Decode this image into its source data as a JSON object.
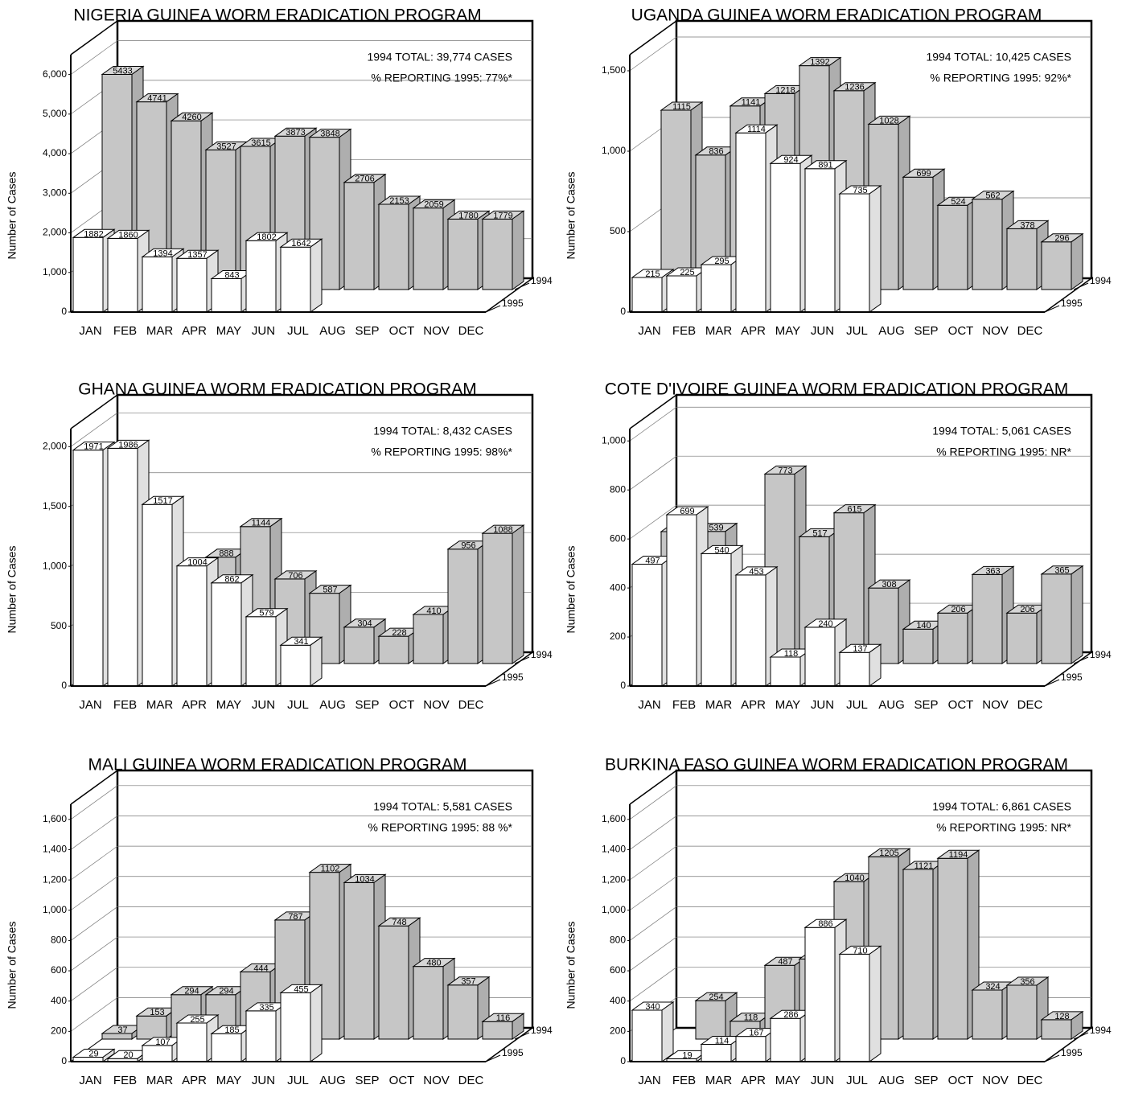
{
  "chart_data": [
    {
      "type": "bar",
      "title": "NIGERIA GUINEA WORM ERADICATION PROGRAM",
      "annotations": [
        "1994 TOTAL: 39,774 CASES",
        "% REPORTING 1995: 77%*"
      ],
      "y_label": "Number of Cases",
      "categories": [
        "JAN",
        "FEB",
        "MAR",
        "APR",
        "MAY",
        "JUN",
        "JUL",
        "AUG",
        "SEP",
        "OCT",
        "NOV",
        "DEC"
      ],
      "series": [
        {
          "name": "1994",
          "color": "#c6c6c6",
          "values": [
            5433,
            4741,
            4260,
            3527,
            3615,
            3873,
            3848,
            2706,
            2153,
            2059,
            1780,
            1779
          ]
        },
        {
          "name": "1995",
          "color": "#ffffff",
          "values": [
            1882,
            1860,
            1394,
            1357,
            843,
            1802,
            1642,
            null,
            null,
            null,
            null,
            null
          ]
        }
      ],
      "ylim": [
        0,
        6500
      ],
      "yticks": [
        0,
        {
          "value": 1000,
          "label": "1,000"
        },
        {
          "value": 2000,
          "label": "2,000"
        },
        {
          "value": 3000,
          "label": "3,000"
        },
        {
          "value": 4000,
          "label": "4,000"
        },
        {
          "value": 5000,
          "label": "5,000"
        },
        {
          "value": 6000,
          "label": "6,000"
        }
      ],
      "grid": true
    },
    {
      "type": "bar",
      "title": "UGANDA GUINEA WORM ERADICATION PROGRAM",
      "annotations": [
        "1994 TOTAL: 10,425 CASES",
        "% REPORTING 1995: 92%*"
      ],
      "y_label": "Number of Cases",
      "categories": [
        "JAN",
        "FEB",
        "MAR",
        "APR",
        "MAY",
        "JUN",
        "JUL",
        "AUG",
        "SEP",
        "OCT",
        "NOV",
        "DEC"
      ],
      "series": [
        {
          "name": "1994",
          "color": "#c6c6c6",
          "values": [
            1115,
            836,
            1141,
            1218,
            1392,
            1236,
            1028,
            699,
            524,
            562,
            378,
            296
          ]
        },
        {
          "name": "1995",
          "color": "#ffffff",
          "values": [
            215,
            225,
            295,
            1114,
            924,
            891,
            735,
            null,
            null,
            null,
            null,
            null
          ]
        }
      ],
      "ylim": [
        0,
        1600
      ],
      "yticks": [
        0,
        500,
        {
          "value": 1000,
          "label": "1,000"
        },
        {
          "value": 1500,
          "label": "1,500"
        }
      ],
      "grid": true
    },
    {
      "type": "bar",
      "title": "GHANA GUINEA WORM ERADICATION PROGRAM",
      "annotations": [
        "1994 TOTAL: 8,432 CASES",
        "% REPORTING 1995: 98%*"
      ],
      "y_label": "Number of Cases",
      "categories": [
        "JAN",
        "FEB",
        "MAR",
        "APR",
        "MAY",
        "JUN",
        "JUL",
        "AUG",
        "SEP",
        "OCT",
        "NOV",
        "DEC"
      ],
      "series": [
        {
          "name": "1994",
          "color": "#c6c6c6",
          "values": [
            null,
            null,
            null,
            888,
            1144,
            706,
            587,
            304,
            228,
            410,
            956,
            1088
          ]
        },
        {
          "name": "1995",
          "color": "#ffffff",
          "values": [
            1971,
            1986,
            1517,
            1004,
            862,
            579,
            341,
            null,
            null,
            null,
            null,
            null
          ]
        }
      ],
      "ylim": [
        0,
        2150
      ],
      "yticks": [
        0,
        500,
        {
          "value": 1000,
          "label": "1,000"
        },
        {
          "value": 1500,
          "label": "1,500"
        },
        {
          "value": 2000,
          "label": "2,000"
        }
      ],
      "grid": true
    },
    {
      "type": "bar",
      "title": "COTE D'IVOIRE GUINEA WORM ERADICATION PROGRAM",
      "annotations": [
        "1994 TOTAL: 5,061 CASES",
        "% REPORTING 1995: NR*"
      ],
      "y_label": "Number of Cases",
      "categories": [
        "JAN",
        "FEB",
        "MAR",
        "APR",
        "MAY",
        "JUN",
        "JUL",
        "AUG",
        "SEP",
        "OCT",
        "NOV",
        "DEC"
      ],
      "series": [
        {
          "name": "1994",
          "color": "#c6c6c6",
          "values": [
            538,
            539,
            null,
            773,
            517,
            615,
            308,
            140,
            206,
            363,
            206,
            365
          ]
        },
        {
          "name": "1995",
          "color": "#ffffff",
          "values": [
            497,
            699,
            540,
            453,
            118,
            240,
            137,
            null,
            null,
            null,
            null,
            null
          ]
        }
      ],
      "ylim": [
        0,
        1050
      ],
      "yticks": [
        0,
        200,
        400,
        600,
        800,
        {
          "value": 1000,
          "label": "1,000"
        }
      ],
      "grid": true
    },
    {
      "type": "bar",
      "title": "MALI GUINEA WORM ERADICATION PROGRAM",
      "annotations": [
        "1994 TOTAL: 5,581 CASES",
        "% REPORTING 1995: 88 %*"
      ],
      "y_label": "Number of Cases",
      "categories": [
        "JAN",
        "FEB",
        "MAR",
        "APR",
        "MAY",
        "JUN",
        "JUL",
        "AUG",
        "SEP",
        "OCT",
        "NOV",
        "DEC"
      ],
      "series": [
        {
          "name": "1994",
          "color": "#c6c6c6",
          "values": [
            37,
            153,
            294,
            294,
            444,
            787,
            1102,
            1034,
            748,
            480,
            357,
            116
          ]
        },
        {
          "name": "1995",
          "color": "#ffffff",
          "values": [
            29,
            20,
            107,
            255,
            185,
            335,
            455,
            null,
            null,
            null,
            null,
            null
          ]
        }
      ],
      "ylim": [
        0,
        1700
      ],
      "yticks": [
        0,
        200,
        400,
        600,
        800,
        {
          "value": 1000,
          "label": "1,000"
        },
        {
          "value": 1200,
          "label": "1,200"
        },
        {
          "value": 1400,
          "label": "1,400"
        },
        {
          "value": 1600,
          "label": "1,600"
        }
      ],
      "grid": true
    },
    {
      "type": "bar",
      "title": "BURKINA FASO GUINEA WORM ERADICATION PROGRAM",
      "annotations": [
        "1994 TOTAL: 6,861 CASES",
        "% REPORTING 1995: NR*"
      ],
      "y_label": "Number of Cases",
      "categories": [
        "JAN",
        "FEB",
        "MAR",
        "APR",
        "MAY",
        "JUN",
        "JUL",
        "AUG",
        "SEP",
        "OCT",
        "NOV",
        "DEC"
      ],
      "series": [
        {
          "name": "1994",
          "color": "#c6c6c6",
          "values": [
            null,
            254,
            118,
            487,
            529,
            1040,
            1205,
            1121,
            1194,
            324,
            356,
            128
          ]
        },
        {
          "name": "1995",
          "color": "#ffffff",
          "values": [
            340,
            19,
            114,
            167,
            286,
            886,
            710,
            null,
            null,
            null,
            null,
            null
          ]
        }
      ],
      "ylim": [
        0,
        1700
      ],
      "yticks": [
        0,
        200,
        400,
        600,
        800,
        {
          "value": 1000,
          "label": "1,000"
        },
        {
          "value": 1200,
          "label": "1,200"
        },
        {
          "value": 1400,
          "label": "1,400"
        },
        {
          "value": 1600,
          "label": "1,600"
        }
      ],
      "grid": true
    }
  ]
}
